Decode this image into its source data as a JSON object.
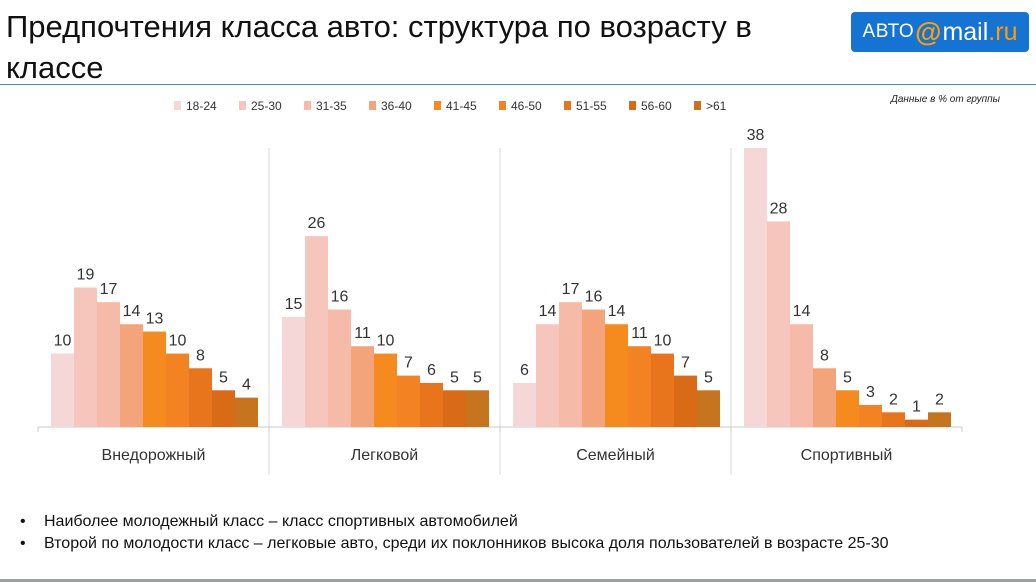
{
  "header": {
    "title": "Предпочтения класса авто: структура по возрасту в классе",
    "logo_part1": "АВТО",
    "logo_at": "@",
    "logo_part2": "mail",
    "logo_part3": ".ru"
  },
  "note": "Данные в % от группы",
  "bullets": [
    "Наиболее молодежный класс – класс спортивных автомобилей",
    "Второй по молодости класс – легковые авто, среди их поклонников высока доля пользователей в возрасте 25-30"
  ],
  "chart_data": {
    "type": "bar",
    "title": "",
    "xlabel": "",
    "ylabel": "",
    "ylim": [
      0,
      38
    ],
    "grid": false,
    "legend_position": "top",
    "categories": [
      "Внедорожный",
      "Легковой",
      "Семейный",
      "Спортивный"
    ],
    "series": [
      {
        "name": "18-24",
        "color": "#f5d7d7",
        "values": [
          10,
          15,
          6,
          38
        ]
      },
      {
        "name": "25-30",
        "color": "#f6c6bd",
        "values": [
          19,
          26,
          14,
          28
        ]
      },
      {
        "name": "31-35",
        "color": "#f5bba8",
        "values": [
          17,
          16,
          17,
          14
        ]
      },
      {
        "name": "36-40",
        "color": "#f3a47a",
        "values": [
          14,
          11,
          16,
          8
        ]
      },
      {
        "name": "41-45",
        "color": "#f58a1f",
        "values": [
          13,
          10,
          14,
          5
        ]
      },
      {
        "name": "46-50",
        "color": "#f28222",
        "values": [
          10,
          7,
          11,
          3
        ]
      },
      {
        "name": "51-55",
        "color": "#e8741c",
        "values": [
          8,
          6,
          10,
          2
        ]
      },
      {
        "name": "56-60",
        "color": "#d96a16",
        "values": [
          5,
          5,
          7,
          1
        ]
      },
      {
        "name": ">61",
        "color": "#c7741e",
        "values": [
          4,
          5,
          5,
          2
        ]
      }
    ]
  }
}
